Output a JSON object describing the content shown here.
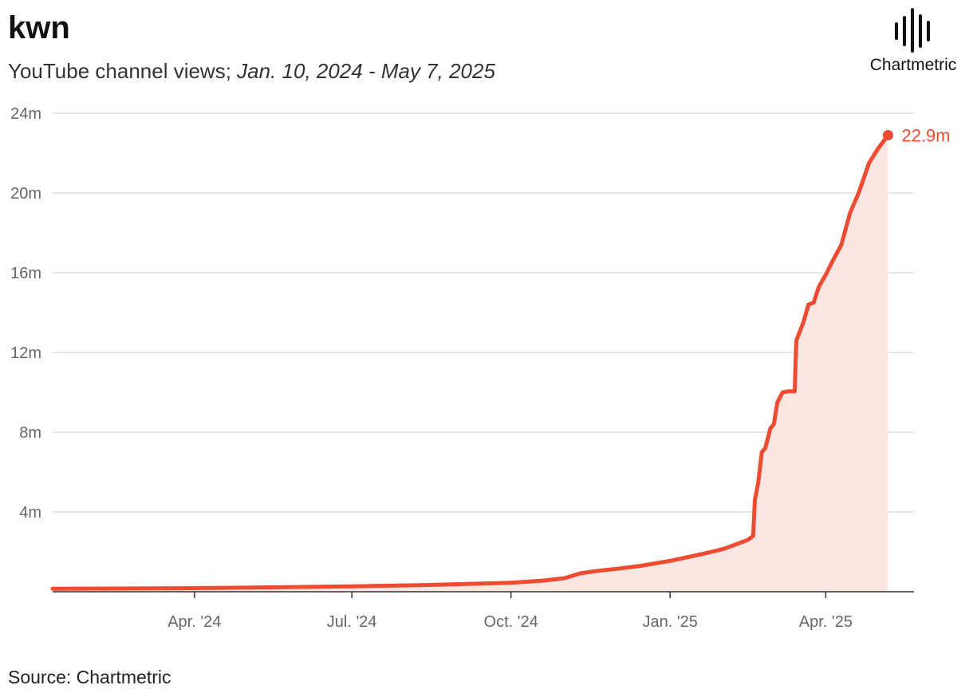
{
  "header": {
    "title": "kwn",
    "subtitle_prefix": "YouTube channel views; ",
    "subtitle_range": "Jan. 10, 2024 - May 7, 2025"
  },
  "logo": {
    "text": "Chartmetric",
    "icon": "soundwave-icon"
  },
  "footer": {
    "source": "Source: Chartmetric"
  },
  "colors": {
    "line": "#ef4a32",
    "area": "#fbe6e1",
    "grid": "#dddddd",
    "axis": "#333333"
  },
  "chart_data": {
    "type": "area",
    "title": "kwn",
    "subtitle": "YouTube channel views; Jan. 10, 2024 - May 7, 2025",
    "xlabel": "",
    "ylabel": "",
    "ylim": [
      0,
      24000000
    ],
    "xlim": [
      "2024-01-10",
      "2025-05-22"
    ],
    "grid": true,
    "y_ticks": [
      {
        "value": 4000000,
        "label": "4m"
      },
      {
        "value": 8000000,
        "label": "8m"
      },
      {
        "value": 12000000,
        "label": "12m"
      },
      {
        "value": 16000000,
        "label": "16m"
      },
      {
        "value": 20000000,
        "label": "20m"
      },
      {
        "value": 24000000,
        "label": "24m"
      }
    ],
    "x_ticks": [
      {
        "date": "2024-04-01",
        "label": "Apr. '24"
      },
      {
        "date": "2024-07-01",
        "label": "Jul. '24"
      },
      {
        "date": "2024-10-01",
        "label": "Oct. '24"
      },
      {
        "date": "2025-01-01",
        "label": "Jan. '25"
      },
      {
        "date": "2025-04-01",
        "label": "Apr. '25"
      }
    ],
    "end_label": "22.9m",
    "series": [
      {
        "x": [
          "2024-01-10",
          "2024-02-15",
          "2024-04-01",
          "2024-05-15",
          "2024-07-01",
          "2024-08-15",
          "2024-10-01",
          "2024-10-20",
          "2024-11-01",
          "2024-11-10",
          "2024-11-20",
          "2024-12-01",
          "2024-12-15",
          "2025-01-01",
          "2025-01-20",
          "2025-02-01",
          "2025-02-15",
          "2025-02-18",
          "2025-02-19",
          "2025-02-21",
          "2025-02-23",
          "2025-02-25",
          "2025-02-28",
          "2025-03-02",
          "2025-03-04",
          "2025-03-07",
          "2025-03-10",
          "2025-03-14",
          "2025-03-15",
          "2025-03-19",
          "2025-03-22",
          "2025-03-25",
          "2025-03-28",
          "2025-04-01",
          "2025-04-05",
          "2025-04-10",
          "2025-04-15",
          "2025-04-20",
          "2025-04-26",
          "2025-05-01",
          "2025-05-07"
        ],
        "y": [
          150000,
          160000,
          180000,
          220000,
          270000,
          340000,
          450000,
          560000,
          680000,
          920000,
          1050000,
          1150000,
          1300000,
          1550000,
          1900000,
          2150000,
          2600000,
          2800000,
          4600000,
          5500000,
          7000000,
          7200000,
          8200000,
          8400000,
          9500000,
          10000000,
          10050000,
          10050000,
          12600000,
          13500000,
          14400000,
          14500000,
          15300000,
          15900000,
          16600000,
          17400000,
          19000000,
          20000000,
          21500000,
          22200000,
          22900000
        ]
      }
    ]
  }
}
